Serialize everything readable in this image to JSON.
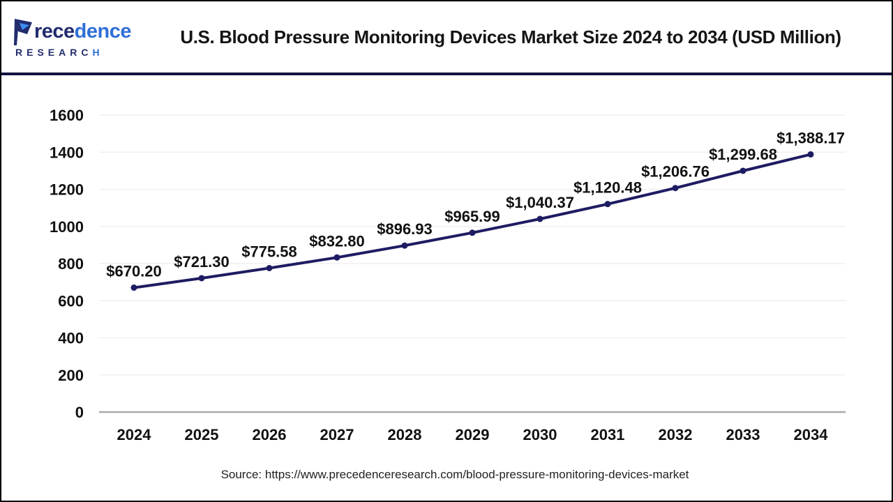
{
  "header": {
    "logo": {
      "brand_part1": "rece",
      "brand_part2": "dence",
      "subtitle_part1": "RESEARC",
      "subtitle_part2": "H"
    },
    "title": "U.S. Blood Pressure Monitoring Devices Market Size 2024 to 2034 (USD Million)"
  },
  "chart_data": {
    "type": "line",
    "title": "U.S. Blood Pressure Monitoring Devices Market Size 2024 to 2034 (USD Million)",
    "categories": [
      "2024",
      "2025",
      "2026",
      "2027",
      "2028",
      "2029",
      "2030",
      "2031",
      "2032",
      "2033",
      "2034"
    ],
    "values": [
      670.2,
      721.3,
      775.58,
      832.8,
      896.93,
      965.99,
      1040.37,
      1120.48,
      1206.76,
      1299.68,
      1388.17
    ],
    "point_labels": [
      "$670.20",
      "$721.30",
      "$775.58",
      "$832.80",
      "$896.93",
      "$965.99",
      "$1,040.37",
      "$1,120.48",
      "$1,206.76",
      "$1,299.68",
      "$1,388.17"
    ],
    "unit": "USD Million",
    "xlabel": "",
    "ylabel": "",
    "ylim": [
      0,
      1600
    ],
    "ytick_step": 200,
    "yticks": [
      "0",
      "200",
      "400",
      "600",
      "800",
      "1000",
      "1200",
      "1400",
      "1600"
    ],
    "grid": "horizontal",
    "legend": "none",
    "line_color": "#1e1c62",
    "point_color": "#1e1c62",
    "label_color": "#111111",
    "grid_color": "#ededed",
    "axis_line_color": "#a9a9a9"
  },
  "footer": {
    "source": "Source: https://www.precedenceresearch.com/blood-pressure-monitoring-devices-market"
  }
}
